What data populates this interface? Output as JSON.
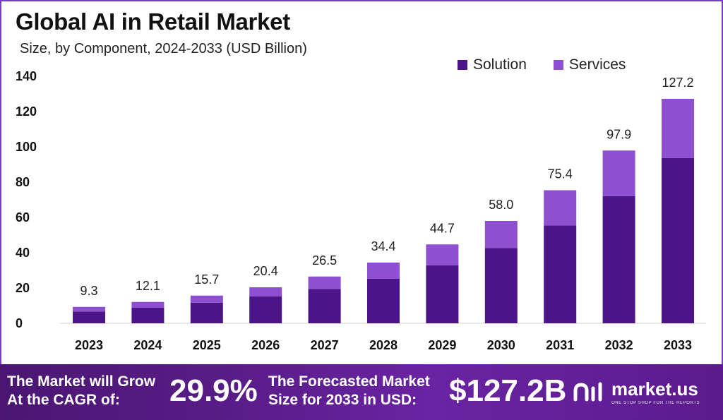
{
  "chart_data": {
    "type": "bar",
    "stacked": true,
    "title": "Global AI in Retail Market",
    "subtitle": "Size, by Component, 2024-2033 (USD Billion)",
    "categories": [
      "2023",
      "2024",
      "2025",
      "2026",
      "2027",
      "2028",
      "2029",
      "2030",
      "2031",
      "2032",
      "2033"
    ],
    "series": [
      {
        "name": "Solution",
        "color": "#4b1587",
        "values": [
          6.7,
          8.8,
          11.7,
          15.3,
          19.5,
          25.2,
          32.9,
          42.7,
          55.5,
          72.1,
          93.7
        ]
      },
      {
        "name": "Services",
        "color": "#8e4fd0",
        "values": [
          2.6,
          3.3,
          4.0,
          5.1,
          7.0,
          9.2,
          11.8,
          15.3,
          19.9,
          25.8,
          33.5
        ]
      }
    ],
    "totals": [
      "9.3",
      "12.1",
      "15.7",
      "20.4",
      "26.5",
      "34.4",
      "44.7",
      "58.0",
      "75.4",
      "97.9",
      "127.2"
    ],
    "y_ticks": [
      0,
      20,
      40,
      60,
      80,
      100,
      120,
      140
    ],
    "ylim": [
      0,
      140
    ],
    "legend_position": "top-right",
    "grid": false
  },
  "footer": {
    "cagr_label_line1": "The Market will Grow",
    "cagr_label_line2": "At the CAGR of:",
    "cagr_value": "29.9%",
    "forecast_label_line1": "The Forecasted Market",
    "forecast_label_line2": "Size for 2033 in USD:",
    "forecast_value": "$127.2B",
    "logo_text": "market.us",
    "logo_tagline": "ONE STOP SHOP FOR THE REPORTS"
  },
  "colors": {
    "solution": "#4b1587",
    "services": "#8e4fd0",
    "footer_bg": "#5a1d8a"
  }
}
